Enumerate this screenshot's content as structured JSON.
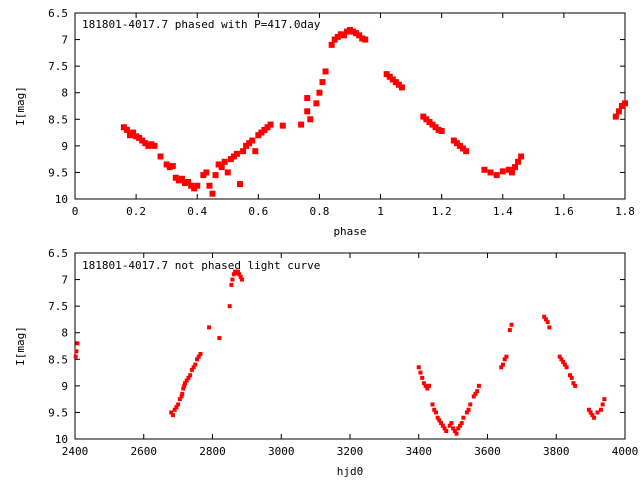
{
  "chart_data": [
    {
      "type": "scatter",
      "title": "181801-4017.7 phased with P=417.0day",
      "xlabel": "phase",
      "ylabel": "I[mag]",
      "xlim": [
        0,
        1.8
      ],
      "ylim": [
        6.5,
        10
      ],
      "y_inverted": true,
      "grid": false,
      "x_ticks": [
        "0",
        "0.2",
        "0.4",
        "0.6",
        "0.8",
        "1",
        "1.2",
        "1.4",
        "1.6",
        "1.8"
      ],
      "y_ticks": [
        "6.5",
        "7",
        "7.5",
        "8",
        "8.5",
        "9",
        "9.5",
        "10"
      ],
      "color": "#ff0000",
      "series": [
        {
          "points": [
            [
              0.16,
              8.65
            ],
            [
              0.17,
              8.7
            ],
            [
              0.18,
              8.8
            ],
            [
              0.19,
              8.75
            ],
            [
              0.2,
              8.82
            ],
            [
              0.21,
              8.85
            ],
            [
              0.22,
              8.9
            ],
            [
              0.23,
              8.95
            ],
            [
              0.24,
              9.0
            ],
            [
              0.25,
              8.97
            ],
            [
              0.26,
              9.0
            ],
            [
              0.28,
              9.2
            ],
            [
              0.3,
              9.35
            ],
            [
              0.31,
              9.4
            ],
            [
              0.32,
              9.38
            ],
            [
              0.33,
              9.6
            ],
            [
              0.34,
              9.65
            ],
            [
              0.35,
              9.62
            ],
            [
              0.36,
              9.7
            ],
            [
              0.37,
              9.68
            ],
            [
              0.38,
              9.75
            ],
            [
              0.39,
              9.8
            ],
            [
              0.4,
              9.75
            ],
            [
              0.42,
              9.55
            ],
            [
              0.43,
              9.5
            ],
            [
              0.44,
              9.75
            ],
            [
              0.45,
              9.9
            ],
            [
              0.46,
              9.55
            ],
            [
              0.47,
              9.35
            ],
            [
              0.48,
              9.4
            ],
            [
              0.49,
              9.3
            ],
            [
              0.5,
              9.5
            ],
            [
              0.51,
              9.25
            ],
            [
              0.52,
              9.2
            ],
            [
              0.53,
              9.15
            ],
            [
              0.54,
              9.72
            ],
            [
              0.55,
              9.1
            ],
            [
              0.56,
              9.0
            ],
            [
              0.57,
              8.95
            ],
            [
              0.58,
              8.9
            ],
            [
              0.59,
              9.1
            ],
            [
              0.6,
              8.8
            ],
            [
              0.61,
              8.75
            ],
            [
              0.62,
              8.7
            ],
            [
              0.63,
              8.65
            ],
            [
              0.64,
              8.6
            ],
            [
              0.68,
              8.62
            ],
            [
              0.74,
              8.6
            ],
            [
              0.76,
              8.35
            ],
            [
              0.77,
              8.5
            ],
            [
              0.76,
              8.1
            ],
            [
              0.79,
              8.2
            ],
            [
              0.8,
              8.0
            ],
            [
              0.81,
              7.8
            ],
            [
              0.82,
              7.6
            ],
            [
              0.84,
              7.1
            ],
            [
              0.85,
              7.0
            ],
            [
              0.86,
              6.95
            ],
            [
              0.87,
              6.9
            ],
            [
              0.88,
              6.92
            ],
            [
              0.89,
              6.85
            ],
            [
              0.9,
              6.82
            ],
            [
              0.91,
              6.85
            ],
            [
              0.92,
              6.88
            ],
            [
              0.93,
              6.92
            ],
            [
              0.94,
              6.98
            ],
            [
              0.95,
              7.0
            ],
            [
              1.02,
              7.65
            ],
            [
              1.03,
              7.7
            ],
            [
              1.04,
              7.75
            ],
            [
              1.05,
              7.8
            ],
            [
              1.06,
              7.85
            ],
            [
              1.07,
              7.9
            ],
            [
              1.14,
              8.45
            ],
            [
              1.15,
              8.5
            ],
            [
              1.16,
              8.55
            ],
            [
              1.17,
              8.6
            ],
            [
              1.18,
              8.65
            ],
            [
              1.19,
              8.7
            ],
            [
              1.2,
              8.72
            ],
            [
              1.24,
              8.9
            ],
            [
              1.25,
              8.95
            ],
            [
              1.26,
              9.0
            ],
            [
              1.27,
              9.05
            ],
            [
              1.28,
              9.1
            ],
            [
              1.34,
              9.45
            ],
            [
              1.36,
              9.5
            ],
            [
              1.38,
              9.55
            ],
            [
              1.4,
              9.48
            ],
            [
              1.42,
              9.45
            ],
            [
              1.43,
              9.5
            ],
            [
              1.44,
              9.4
            ],
            [
              1.45,
              9.3
            ],
            [
              1.46,
              9.2
            ],
            [
              1.77,
              8.45
            ],
            [
              1.78,
              8.35
            ],
            [
              1.79,
              8.25
            ],
            [
              1.8,
              8.2
            ]
          ]
        }
      ]
    },
    {
      "type": "scatter",
      "title": "181801-4017.7 not phased light curve",
      "xlabel": "hjd0",
      "ylabel": "I[mag]",
      "xlim": [
        2400,
        4000
      ],
      "ylim": [
        6.5,
        10
      ],
      "y_inverted": true,
      "grid": false,
      "x_ticks": [
        "2400",
        "2600",
        "2800",
        "3000",
        "3200",
        "3400",
        "3600",
        "3800",
        "4000"
      ],
      "y_ticks": [
        "6.5",
        "7",
        "7.5",
        "8",
        "8.5",
        "9",
        "9.5",
        "10"
      ],
      "color": "#ff0000",
      "series": [
        {
          "points": [
            [
              2402,
              8.45
            ],
            [
              2404,
              8.35
            ],
            [
              2407,
              8.2
            ],
            [
              2680,
              9.5
            ],
            [
              2685,
              9.55
            ],
            [
              2690,
              9.45
            ],
            [
              2695,
              9.4
            ],
            [
              2700,
              9.35
            ],
            [
              2705,
              9.25
            ],
            [
              2710,
              9.2
            ],
            [
              2712,
              9.15
            ],
            [
              2715,
              9.05
            ],
            [
              2718,
              9.0
            ],
            [
              2720,
              8.95
            ],
            [
              2725,
              8.9
            ],
            [
              2730,
              8.85
            ],
            [
              2735,
              8.8
            ],
            [
              2740,
              8.7
            ],
            [
              2745,
              8.65
            ],
            [
              2750,
              8.6
            ],
            [
              2755,
              8.5
            ],
            [
              2760,
              8.45
            ],
            [
              2765,
              8.4
            ],
            [
              2790,
              7.9
            ],
            [
              2820,
              8.1
            ],
            [
              2850,
              7.5
            ],
            [
              2855,
              7.1
            ],
            [
              2858,
              7.0
            ],
            [
              2862,
              6.9
            ],
            [
              2866,
              6.85
            ],
            [
              2870,
              6.88
            ],
            [
              2874,
              6.85
            ],
            [
              2878,
              6.9
            ],
            [
              2882,
              6.95
            ],
            [
              2886,
              7.0
            ],
            [
              3400,
              8.65
            ],
            [
              3405,
              8.75
            ],
            [
              3410,
              8.85
            ],
            [
              3415,
              8.95
            ],
            [
              3420,
              9.0
            ],
            [
              3425,
              9.05
            ],
            [
              3430,
              9.0
            ],
            [
              3440,
              9.35
            ],
            [
              3445,
              9.45
            ],
            [
              3450,
              9.5
            ],
            [
              3455,
              9.6
            ],
            [
              3460,
              9.65
            ],
            [
              3465,
              9.7
            ],
            [
              3470,
              9.75
            ],
            [
              3475,
              9.8
            ],
            [
              3480,
              9.85
            ],
            [
              3490,
              9.75
            ],
            [
              3495,
              9.7
            ],
            [
              3500,
              9.8
            ],
            [
              3505,
              9.85
            ],
            [
              3510,
              9.9
            ],
            [
              3515,
              9.8
            ],
            [
              3520,
              9.75
            ],
            [
              3525,
              9.7
            ],
            [
              3530,
              9.6
            ],
            [
              3540,
              9.5
            ],
            [
              3545,
              9.45
            ],
            [
              3550,
              9.35
            ],
            [
              3560,
              9.2
            ],
            [
              3565,
              9.15
            ],
            [
              3570,
              9.1
            ],
            [
              3575,
              9.0
            ],
            [
              3640,
              8.65
            ],
            [
              3645,
              8.6
            ],
            [
              3650,
              8.5
            ],
            [
              3655,
              8.45
            ],
            [
              3665,
              7.95
            ],
            [
              3670,
              7.85
            ],
            [
              3765,
              7.7
            ],
            [
              3770,
              7.75
            ],
            [
              3775,
              7.8
            ],
            [
              3780,
              7.9
            ],
            [
              3810,
              8.45
            ],
            [
              3815,
              8.5
            ],
            [
              3820,
              8.55
            ],
            [
              3825,
              8.6
            ],
            [
              3830,
              8.65
            ],
            [
              3840,
              8.8
            ],
            [
              3845,
              8.85
            ],
            [
              3850,
              8.95
            ],
            [
              3855,
              9.0
            ],
            [
              3895,
              9.45
            ],
            [
              3900,
              9.5
            ],
            [
              3905,
              9.55
            ],
            [
              3910,
              9.6
            ],
            [
              3920,
              9.5
            ],
            [
              3930,
              9.45
            ],
            [
              3935,
              9.35
            ],
            [
              3940,
              9.25
            ]
          ]
        }
      ]
    }
  ]
}
